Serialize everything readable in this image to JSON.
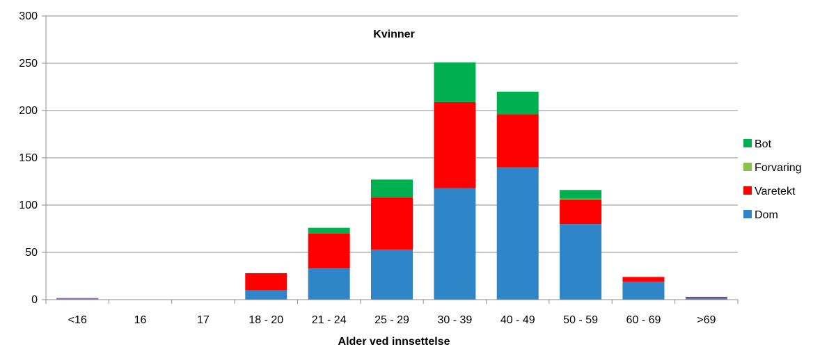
{
  "chart_data": {
    "type": "bar",
    "stacked": true,
    "title": "Kvinner",
    "xlabel": "Alder ved innsettelse",
    "ylabel": "",
    "ylim": [
      0,
      300
    ],
    "yticks": [
      0,
      50,
      100,
      150,
      200,
      250,
      300
    ],
    "grid": true,
    "legend_position": "right",
    "categories": [
      "<16",
      "16",
      "17",
      "18 - 20",
      "21 - 24",
      "25 - 29",
      "30 - 39",
      "40 - 49",
      "50 - 59",
      "60 - 69",
      ">69"
    ],
    "series": [
      {
        "name": "Dom",
        "color": "#2e86c8",
        "values": [
          1,
          0,
          0,
          10,
          33,
          53,
          118,
          140,
          80,
          19,
          2
        ]
      },
      {
        "name": "Varetekt",
        "color": "#ff0000",
        "values": [
          0,
          0,
          0,
          18,
          37,
          55,
          91,
          56,
          26,
          5,
          1
        ]
      },
      {
        "name": "Forvaring",
        "color": "#8cc152",
        "values": [
          0,
          0,
          0,
          0,
          0,
          0,
          0,
          0,
          1,
          0,
          0
        ]
      },
      {
        "name": "Bot",
        "color": "#00b050",
        "values": [
          0,
          0,
          0,
          0,
          6,
          19,
          42,
          24,
          9,
          0,
          0
        ]
      }
    ],
    "annotations": [
      {
        "category": "<16",
        "color": "#8e6bbf",
        "value": 1
      }
    ]
  }
}
